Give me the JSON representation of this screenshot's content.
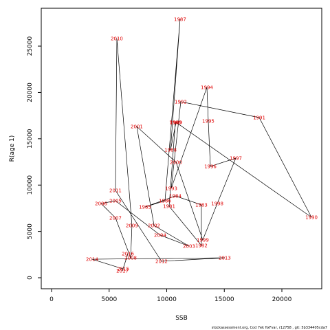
{
  "chart_data": {
    "type": "scatter",
    "x_label": "SSB",
    "y_label": "R(age 1)",
    "footnote": "stockassessment.org, Cod 7ek fixFvar, r12758 , git: 5b334405cda7",
    "connected": true,
    "line_color": "#000000",
    "label_color": "#e00000",
    "labels": [
      "1980",
      "1981",
      "1982",
      "1983",
      "1984",
      "1985",
      "1986",
      "1987",
      "1988",
      "1989",
      "1990",
      "1991",
      "1992",
      "1993",
      "1994",
      "1995",
      "1996",
      "1997",
      "1998",
      "1999",
      "2000",
      "2001",
      "2002",
      "2003",
      "2004",
      "2005",
      "2006",
      "2007",
      "2008",
      "2009",
      "2010",
      "2011",
      "2012",
      "2013",
      "2014",
      "2015",
      "2016",
      "2017"
    ],
    "x": [
      10750,
      10210,
      13010,
      13010,
      10750,
      8120,
      9850,
      11160,
      10330,
      10810,
      22570,
      18030,
      11220,
      10390,
      13490,
      13610,
      13790,
      16000,
      14390,
      13130,
      10810,
      7400,
      8900,
      11940,
      9430,
      5550,
      4300,
      5550,
      6870,
      6980,
      5670,
      5550,
      9550,
      15040,
      3520,
      6210,
      6630,
      6150
    ],
    "y": [
      16770,
      7720,
      3490,
      7870,
      8830,
      7640,
      8310,
      27900,
      13800,
      16770,
      6530,
      17290,
      19000,
      9650,
      20550,
      16920,
      12020,
      12910,
      8010,
      4080,
      12470,
      16320,
      5640,
      3410,
      4600,
      8310,
      8010,
      6460,
      2150,
      5640,
      25820,
      9420,
      1780,
      2150,
      2000,
      960,
      2600,
      740
    ],
    "xlim": [
      -896,
      23463
    ],
    "ylim": [
      -1187,
      29086
    ],
    "xticks": [
      0,
      5000,
      10000,
      15000,
      20000
    ],
    "yticks": [
      0,
      5000,
      10000,
      15000,
      20000,
      25000
    ]
  }
}
